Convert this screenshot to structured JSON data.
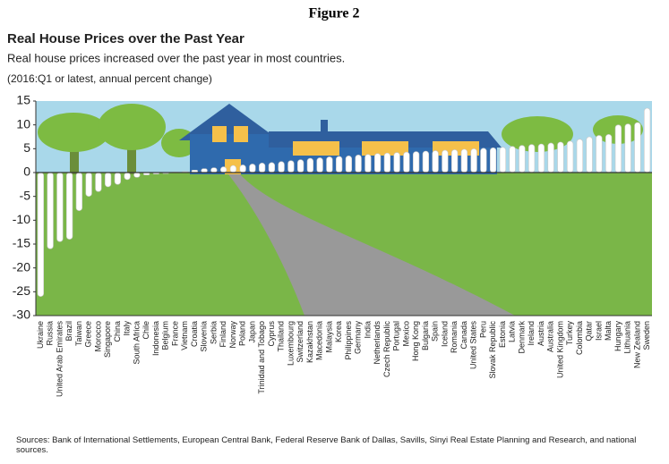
{
  "chart_data": {
    "type": "bar",
    "figure_label": "Figure 2",
    "title": "Real House Prices over the Past Year",
    "subtitle": "Real house prices increased over the past year in most countries.",
    "note": "(2016:Q1 or latest, annual percent change)",
    "source": "Sources: Bank of International Settlements, European Central Bank, Federal Reserve Bank of Dallas, Savills, Sinyi Real Estate Planning and Research, and national sources.",
    "categories": [
      "Ukraine",
      "Russia",
      "United Arab Emirates",
      "Brazil",
      "Taiwan",
      "Greece",
      "Morocco",
      "Singapore",
      "China",
      "Italy",
      "South Africa",
      "Chile",
      "Indonesia",
      "Belgium",
      "France",
      "Vietnam",
      "Croatia",
      "Slovenia",
      "Serbia",
      "Finland",
      "Norway",
      "Poland",
      "Japan",
      "Trinidad and Tobago",
      "Cyprus",
      "Thailand",
      "Luxembourg",
      "Switzerland",
      "Kazakhstan",
      "Macedonia",
      "Malaysia",
      "Korea",
      "Philippines",
      "Germany",
      "India",
      "Netherlands",
      "Czech Republic",
      "Portugal",
      "Mexico",
      "Hong Kong",
      "Bulgaria",
      "Spain",
      "Iceland",
      "Romania",
      "Canada",
      "United States",
      "Peru",
      "Slovak Republic",
      "Estonia",
      "Latvia",
      "Denmark",
      "Ireland",
      "Austria",
      "Australia",
      "United Kingdom",
      "Turkey",
      "Colombia",
      "Qatar",
      "Israel",
      "Malta",
      "Hungary",
      "Lithuania",
      "New Zealand",
      "Sweden"
    ],
    "values": [
      -26,
      -16,
      -14.5,
      -14,
      -8,
      -5,
      -4,
      -3,
      -2.5,
      -1.5,
      -1,
      -0.5,
      -0.3,
      -0.2,
      0.1,
      0.2,
      0.5,
      0.8,
      1,
      1.2,
      1.5,
      1.6,
      1.8,
      2,
      2.1,
      2.3,
      2.5,
      2.7,
      3,
      3.1,
      3.3,
      3.4,
      3.5,
      3.7,
      3.8,
      4,
      4.1,
      4.2,
      4.3,
      4.4,
      4.5,
      4.6,
      4.7,
      4.8,
      4.9,
      5,
      5.1,
      5.2,
      5.3,
      5.5,
      5.7,
      5.9,
      6,
      6.2,
      6.4,
      6.6,
      7,
      7.5,
      7.8,
      8,
      10,
      10.2,
      10.5,
      13.5
    ],
    "color": "#ffffff",
    "ylim": [
      -30,
      15
    ],
    "yticks": [
      15,
      10,
      5,
      0,
      -5,
      -10,
      -15,
      -20,
      -25,
      -30
    ],
    "grid": false
  }
}
